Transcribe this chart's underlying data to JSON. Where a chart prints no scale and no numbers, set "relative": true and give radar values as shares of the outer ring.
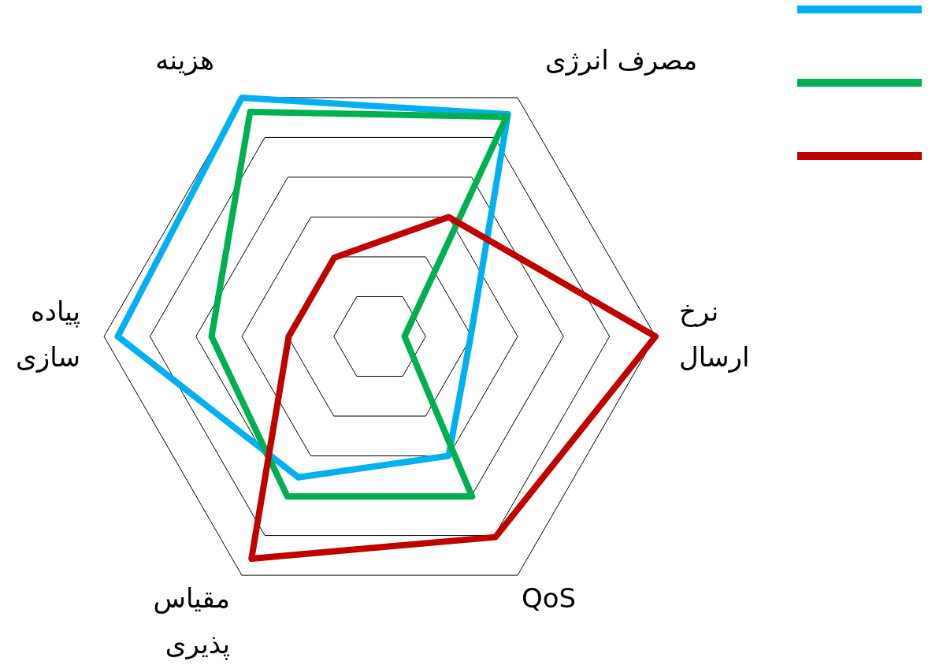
{
  "chart_data": {
    "type": "radar",
    "relative": true,
    "categories": [
      "مصرف انرژی",
      "نرخ ارسال",
      "QoS",
      "مقیاس پذیری",
      "پیاده سازی",
      "هزینه"
    ],
    "series": [
      {
        "color": "#00b0f0",
        "values": [
          0.93,
          0.33,
          0.5,
          0.59,
          0.95,
          1.0
        ]
      },
      {
        "color": "#00b050",
        "values": [
          0.92,
          0.09,
          0.67,
          0.67,
          0.61,
          0.94
        ]
      },
      {
        "color": "#c00000",
        "values": [
          0.5,
          1.0,
          0.84,
          0.93,
          0.33,
          0.33
        ]
      }
    ]
  }
}
